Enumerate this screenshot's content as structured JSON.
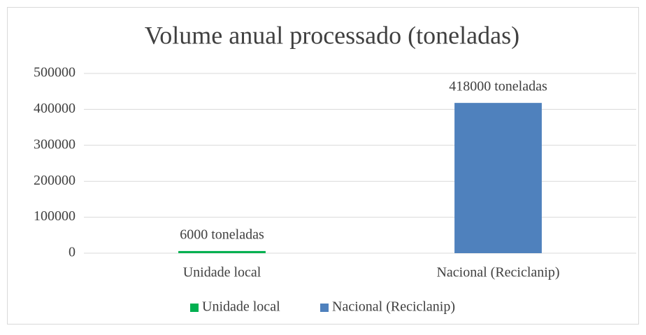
{
  "chart_data": {
    "type": "bar",
    "title": "Volume anual processado (toneladas)",
    "categories": [
      "Unidade local",
      "Nacional (Reciclanip)"
    ],
    "values": [
      6000,
      418000
    ],
    "value_labels": [
      "6000 toneladas",
      "418000 toneladas"
    ],
    "colors": [
      "#00b050",
      "#4f81bd"
    ],
    "ylim": [
      0,
      500000
    ],
    "yticks": [
      0,
      100000,
      200000,
      300000,
      400000,
      500000
    ],
    "grid": true,
    "legend": "bottom"
  }
}
